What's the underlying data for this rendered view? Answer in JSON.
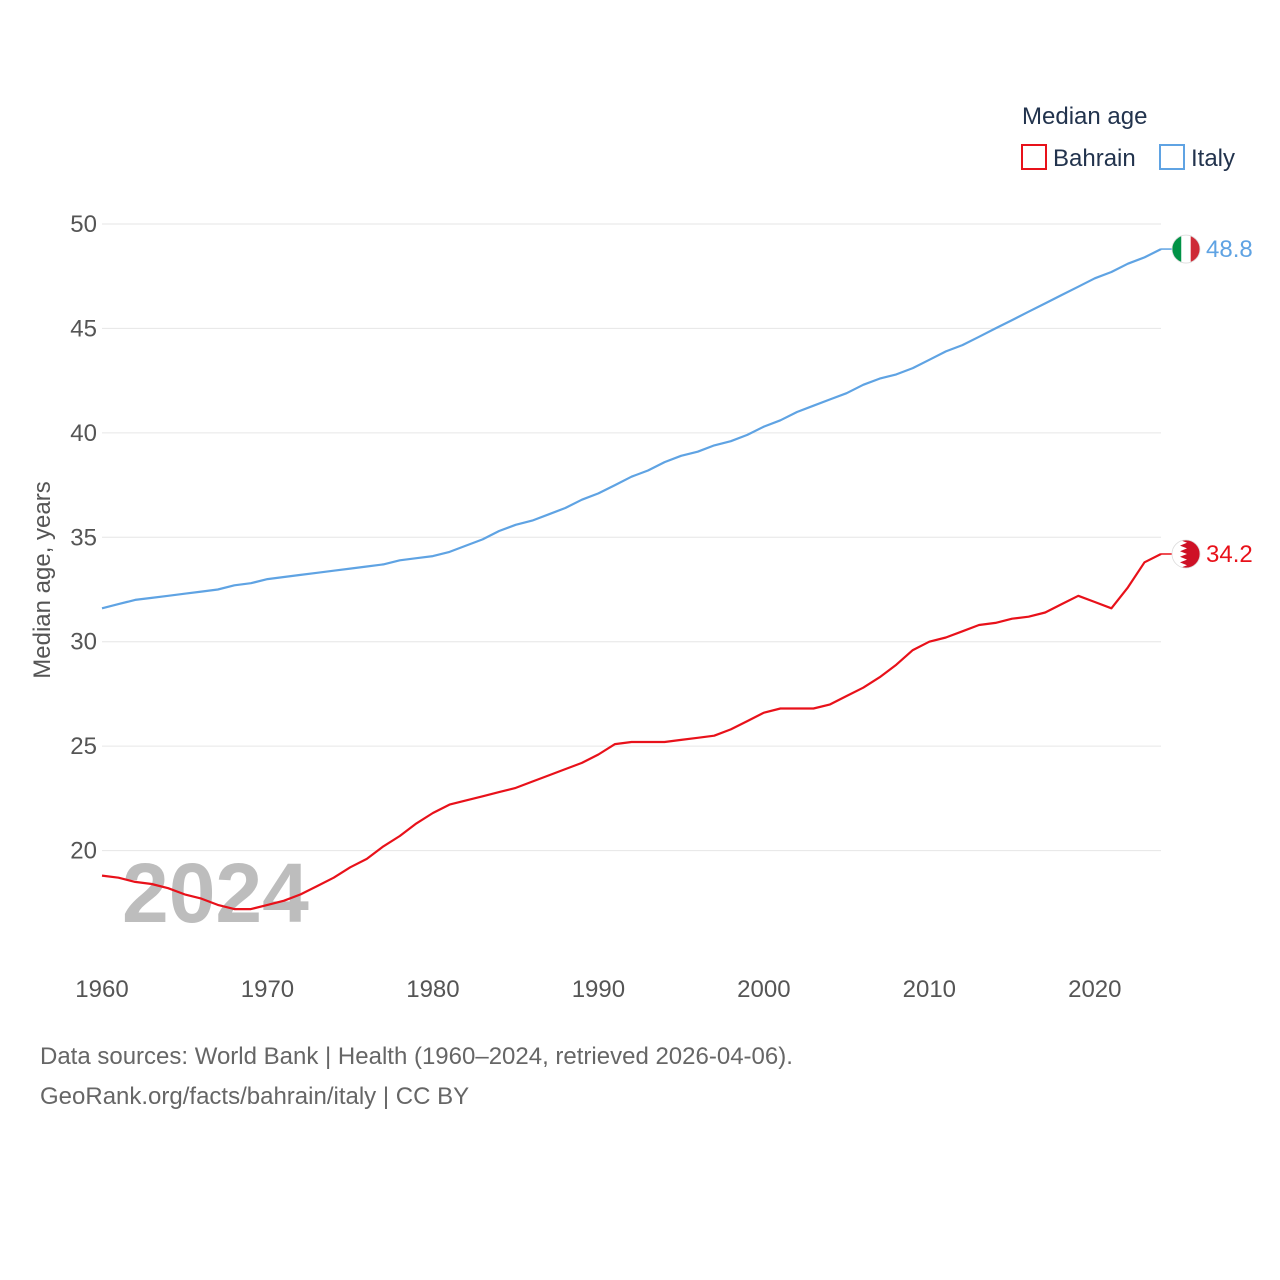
{
  "chart_data": {
    "type": "line",
    "ylabel": "Median age, years",
    "legend": {
      "title": "Median age",
      "position": "top-right"
    },
    "watermark_year": "2024",
    "xlim": [
      1960,
      2024
    ],
    "ylim": [
      15,
      50
    ],
    "y_ticks": [
      20,
      25,
      30,
      35,
      40,
      45,
      50
    ],
    "x_ticks": [
      1960,
      1970,
      1980,
      1990,
      2000,
      2010,
      2020
    ],
    "x": [
      1960,
      1961,
      1962,
      1963,
      1964,
      1965,
      1966,
      1967,
      1968,
      1969,
      1970,
      1971,
      1972,
      1973,
      1974,
      1975,
      1976,
      1977,
      1978,
      1979,
      1980,
      1981,
      1982,
      1983,
      1984,
      1985,
      1986,
      1987,
      1988,
      1989,
      1990,
      1991,
      1992,
      1993,
      1994,
      1995,
      1996,
      1997,
      1998,
      1999,
      2000,
      2001,
      2002,
      2003,
      2004,
      2005,
      2006,
      2007,
      2008,
      2009,
      2010,
      2011,
      2012,
      2013,
      2014,
      2015,
      2016,
      2017,
      2018,
      2019,
      2020,
      2021,
      2022,
      2023,
      2024
    ],
    "series": [
      {
        "name": "Bahrain",
        "color": "#e8111a",
        "end_label": "34.2",
        "flag": "bahrain",
        "values": [
          18.8,
          18.7,
          18.5,
          18.4,
          18.2,
          17.9,
          17.7,
          17.4,
          17.2,
          17.2,
          17.4,
          17.6,
          17.9,
          18.3,
          18.7,
          19.2,
          19.6,
          20.2,
          20.7,
          21.3,
          21.8,
          22.2,
          22.4,
          22.6,
          22.8,
          23.0,
          23.3,
          23.6,
          23.9,
          24.2,
          24.6,
          25.1,
          25.2,
          25.2,
          25.2,
          25.3,
          25.4,
          25.5,
          25.8,
          26.2,
          26.6,
          26.8,
          26.8,
          26.8,
          27.0,
          27.4,
          27.8,
          28.3,
          28.9,
          29.6,
          30.0,
          30.2,
          30.5,
          30.8,
          30.9,
          31.1,
          31.2,
          31.4,
          31.8,
          32.2,
          31.9,
          31.6,
          32.6,
          33.8,
          34.2
        ]
      },
      {
        "name": "Italy",
        "color": "#5fa3e3",
        "end_label": "48.8",
        "flag": "italy",
        "values": [
          31.6,
          31.8,
          32.0,
          32.1,
          32.2,
          32.3,
          32.4,
          32.5,
          32.7,
          32.8,
          33.0,
          33.1,
          33.2,
          33.3,
          33.4,
          33.5,
          33.6,
          33.7,
          33.9,
          34.0,
          34.1,
          34.3,
          34.6,
          34.9,
          35.3,
          35.6,
          35.8,
          36.1,
          36.4,
          36.8,
          37.1,
          37.5,
          37.9,
          38.2,
          38.6,
          38.9,
          39.1,
          39.4,
          39.6,
          39.9,
          40.3,
          40.6,
          41.0,
          41.3,
          41.6,
          41.9,
          42.3,
          42.6,
          42.8,
          43.1,
          43.5,
          43.9,
          44.2,
          44.6,
          45.0,
          45.4,
          45.8,
          46.2,
          46.6,
          47.0,
          47.4,
          47.7,
          48.1,
          48.4,
          48.8
        ]
      }
    ]
  },
  "source": {
    "line1": "Data sources: World Bank | Health (1960–2024, retrieved 2026-04-06).",
    "line2": "GeoRank.org/facts/bahrain/italy | CC BY"
  }
}
